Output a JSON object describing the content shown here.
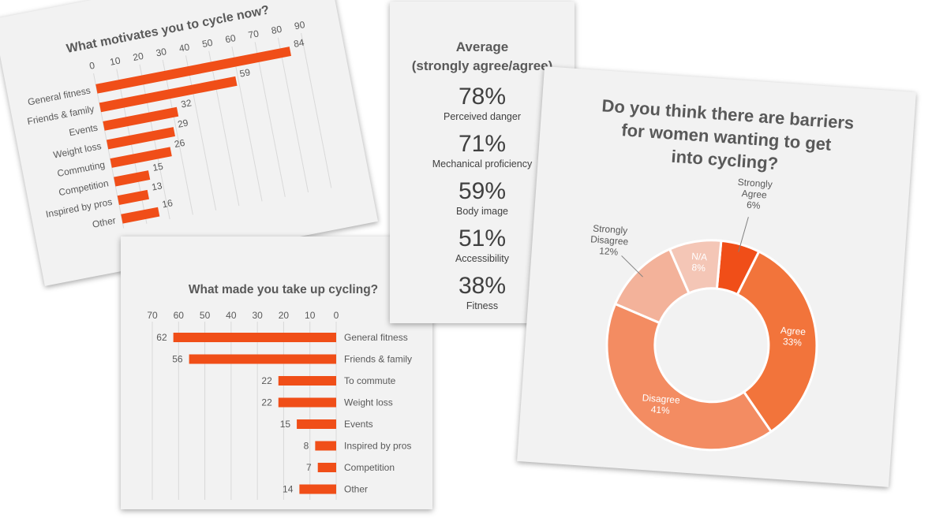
{
  "chart_data": [
    {
      "type": "bar",
      "orientation": "horizontal",
      "title": "What motivates you to cycle now?",
      "categories": [
        "General fitness",
        "Friends & family",
        "Events",
        "Weight loss",
        "Commuting",
        "Competition",
        "Inspired by pros",
        "Other"
      ],
      "values": [
        84,
        59,
        32,
        29,
        26,
        15,
        13,
        16
      ],
      "xlim": [
        0,
        90
      ],
      "xticks": [
        "0",
        "10",
        "20",
        "30",
        "40",
        "50",
        "60",
        "70",
        "80",
        "90"
      ],
      "color": "#f04e18",
      "grid": true
    },
    {
      "type": "bar",
      "orientation": "horizontal",
      "title": "What made you take up cycling?",
      "categories": [
        "General fitness",
        "Friends & family",
        "To commute",
        "Weight loss",
        "Events",
        "Inspired by pros",
        "Competition",
        "Other"
      ],
      "values": [
        62,
        56,
        22,
        22,
        15,
        8,
        7,
        14
      ],
      "xlim": [
        0,
        70
      ],
      "xticks": [
        "70",
        "60",
        "50",
        "40",
        "30",
        "20",
        "10",
        "0"
      ],
      "axis_direction": "reversed",
      "color": "#f04e18",
      "grid": true
    },
    {
      "type": "table",
      "title": "Average\n(strongly agree/agree)",
      "rows": [
        {
          "value": "78%",
          "label": "Perceived danger"
        },
        {
          "value": "71%",
          "label": "Mechanical proficiency"
        },
        {
          "value": "59%",
          "label": "Body image"
        },
        {
          "value": "51%",
          "label": "Accessibility"
        },
        {
          "value": "38%",
          "label": "Fitness"
        }
      ]
    },
    {
      "type": "pie",
      "donut": true,
      "title": "Do you think there are barriers for women wanting to get into cycling?",
      "slices": [
        {
          "label": "Strongly Agree",
          "value": 6,
          "display": "6%",
          "color": "#f04e18"
        },
        {
          "label": "Agree",
          "value": 33,
          "display": "33%",
          "color": "#f2743b"
        },
        {
          "label": "Disagree",
          "value": 41,
          "display": "41%",
          "color": "#f38c62"
        },
        {
          "label": "Strongly Disagree",
          "value": 12,
          "display": "12%",
          "color": "#f3b29a"
        },
        {
          "label": "N/A",
          "value": 8,
          "display": "8%",
          "color": "#f4c6b6"
        }
      ]
    }
  ]
}
